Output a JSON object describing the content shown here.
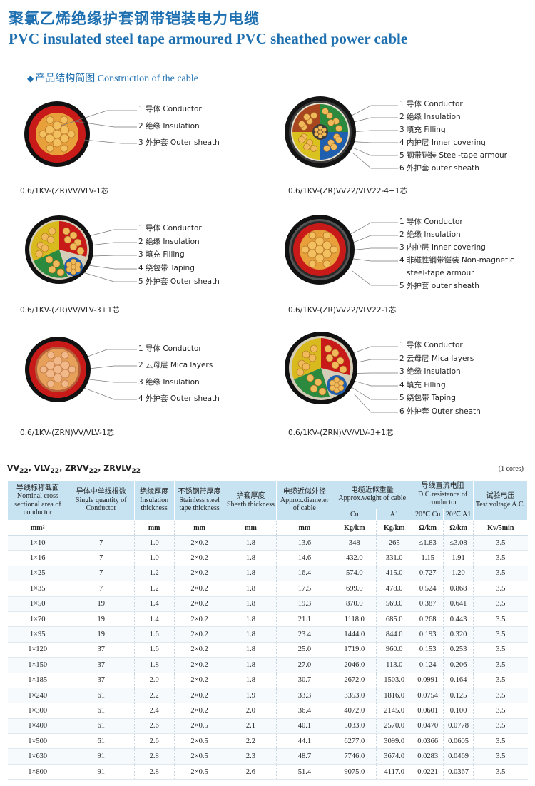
{
  "header": {
    "title_cn": "聚氯乙烯绝缘护套钢带铠装电力电缆",
    "title_en": "PVC insulated steel tape armoured PVC sheathed power cable"
  },
  "section": {
    "label": "产品结构简图 Construction of the cable"
  },
  "cables": [
    {
      "model": "0.6/1KV-(ZR)VV/VLV-1芯",
      "labels": [
        "1 导体 Conductor",
        "2 绝缘 Insulation",
        "3 外护套 Outer sheath"
      ]
    },
    {
      "model": "0.6/1KV-(ZR)VV22/VLV22-4+1芯",
      "labels": [
        "1 导体 Conductor",
        "2 绝缘 Insulation",
        "3 填充 Filling",
        "4 内护层 Inner covering",
        "5 钢带铠装 Steel-tape armour",
        "6 外护套 outer sheath"
      ]
    },
    {
      "model": "0.6/1KV-(ZR)VV/VLV-3+1芯",
      "labels": [
        "1 导体 Conductor",
        "2 绝缘 Insulation",
        "3 填充 Filling",
        "4 绕包带 Taping",
        "5 外护套 Outer sheath"
      ]
    },
    {
      "model": "0.6/1KV-(ZR)VV22/VLV22-1芯",
      "labels": [
        "1 导体 Conductor",
        "2 绝缘 Insulation",
        "3 内护层 Inner covering",
        "4 非磁性钢带铠装 Non-magnetic",
        "steel-tape armour",
        "5 外护套 outer sheath"
      ]
    },
    {
      "model": "0.6/1KV-(ZRN)VV/VLV-1芯",
      "labels": [
        "1 导体 Conductor",
        "2 云母层 Mica layers",
        "3 绝缘 Insulation",
        "4 外护套 Outer sheath"
      ]
    },
    {
      "model": "0.6/1KV-(ZRN)VV/VLV-3+1芯",
      "labels": [
        "1 导体 Conductor",
        "2 云母层 Mica layers",
        "3 绝缘 Insulation",
        "4 填充 Filling",
        "5 绕包带 Taping",
        "6 外护套 Outer sheath"
      ]
    }
  ],
  "table": {
    "caption_html": "VV<sub>22</sub>, VLV<sub>22</sub>, ZRVV<sub>22</sub>, ZRVLV<sub>22</sub>",
    "cores": "(1 cores)",
    "headers": {
      "section_cn": "导线标称截面",
      "section_en": "Nominal cross sectional area of conductor",
      "qty_cn": "导体中单线根数",
      "qty_en": "Single quantity of Conductor",
      "ins_cn": "绝缘厚度",
      "ins_en": "Insulation thickness",
      "steel_cn": "不锈钢带厚度",
      "steel_en": "Stainless steel tape thickness",
      "sheath_cn": "护套厚度",
      "sheath_en": "Sheath thickness",
      "dia_cn": "电缆近似外径",
      "dia_en": "Approx.diameter of cable",
      "wt_cn": "电缆近似重量",
      "wt_en": "Approx.weight of cable",
      "res_cn": "导线直流电阻",
      "res_en": "D.C.resistance of conductor",
      "test_cn": "试验电压",
      "test_en": "Test voltage A.C.",
      "cu": "Cu",
      "al": "A1",
      "r_cu": "20℃ Cu",
      "r_al": "20℃ A1"
    },
    "units": [
      "mm²",
      "",
      "mm",
      "mm",
      "mm",
      "mm",
      "Kg/km",
      "Kg/km",
      "Ω/km",
      "Ω/km",
      "Kv/5min"
    ],
    "rows": [
      [
        "1×10",
        "7",
        "1.0",
        "2×0.2",
        "1.8",
        "13.6",
        "348",
        "265",
        "≤1.83",
        "≤3.08",
        "3.5"
      ],
      [
        "1×16",
        "7",
        "1.0",
        "2×0.2",
        "1.8",
        "14.6",
        "432.0",
        "331.0",
        "1.15",
        "1.91",
        "3.5"
      ],
      [
        "1×25",
        "7",
        "1.2",
        "2×0.2",
        "1.8",
        "16.4",
        "574.0",
        "415.0",
        "0.727",
        "1.20",
        "3.5"
      ],
      [
        "1×35",
        "7",
        "1.2",
        "2×0.2",
        "1.8",
        "17.5",
        "699.0",
        "478.0",
        "0.524",
        "0.868",
        "3.5"
      ],
      [
        "1×50",
        "19",
        "1.4",
        "2×0.2",
        "1.8",
        "19.3",
        "870.0",
        "569.0",
        "0.387",
        "0.641",
        "3.5"
      ],
      [
        "1×70",
        "19",
        "1.4",
        "2×0.2",
        "1.8",
        "21.1",
        "1118.0",
        "685.0",
        "0.268",
        "0.443",
        "3.5"
      ],
      [
        "1×95",
        "19",
        "1.6",
        "2×0.2",
        "1.8",
        "23.4",
        "1444.0",
        "844.0",
        "0.193",
        "0.320",
        "3.5"
      ],
      [
        "1×120",
        "37",
        "1.6",
        "2×0.2",
        "1.8",
        "25.0",
        "1719.0",
        "960.0",
        "0.153",
        "0.253",
        "3.5"
      ],
      [
        "1×150",
        "37",
        "1.8",
        "2×0.2",
        "1.8",
        "27.0",
        "2046.0",
        "113.0",
        "0.124",
        "0.206",
        "3.5"
      ],
      [
        "1×185",
        "37",
        "2.0",
        "2×0.2",
        "1.8",
        "30.7",
        "2672.0",
        "1503.0",
        "0.0991",
        "0.164",
        "3.5"
      ],
      [
        "1×240",
        "61",
        "2.2",
        "2×0.2",
        "1.9",
        "33.3",
        "3353.0",
        "1816.0",
        "0.0754",
        "0.125",
        "3.5"
      ],
      [
        "1×300",
        "61",
        "2.4",
        "2×0.2",
        "2.0",
        "36.4",
        "4072.0",
        "2145.0",
        "0.0601",
        "0.100",
        "3.5"
      ],
      [
        "1×400",
        "61",
        "2.6",
        "2×0.5",
        "2.1",
        "40.1",
        "5033.0",
        "2570.0",
        "0.0470",
        "0.0778",
        "3.5"
      ],
      [
        "1×500",
        "61",
        "2.6",
        "2×0.5",
        "2.2",
        "44.1",
        "6277.0",
        "3099.0",
        "0.0366",
        "0.0605",
        "3.5"
      ],
      [
        "1×630",
        "91",
        "2.8",
        "2×0.5",
        "2.3",
        "48.7",
        "7746.0",
        "3674.0",
        "0.0283",
        "0.0469",
        "3.5"
      ],
      [
        "1×800",
        "91",
        "2.8",
        "2×0.5",
        "2.6",
        "51.4",
        "9075.0",
        "4117.0",
        "0.0221",
        "0.0367",
        "3.5"
      ]
    ]
  }
}
